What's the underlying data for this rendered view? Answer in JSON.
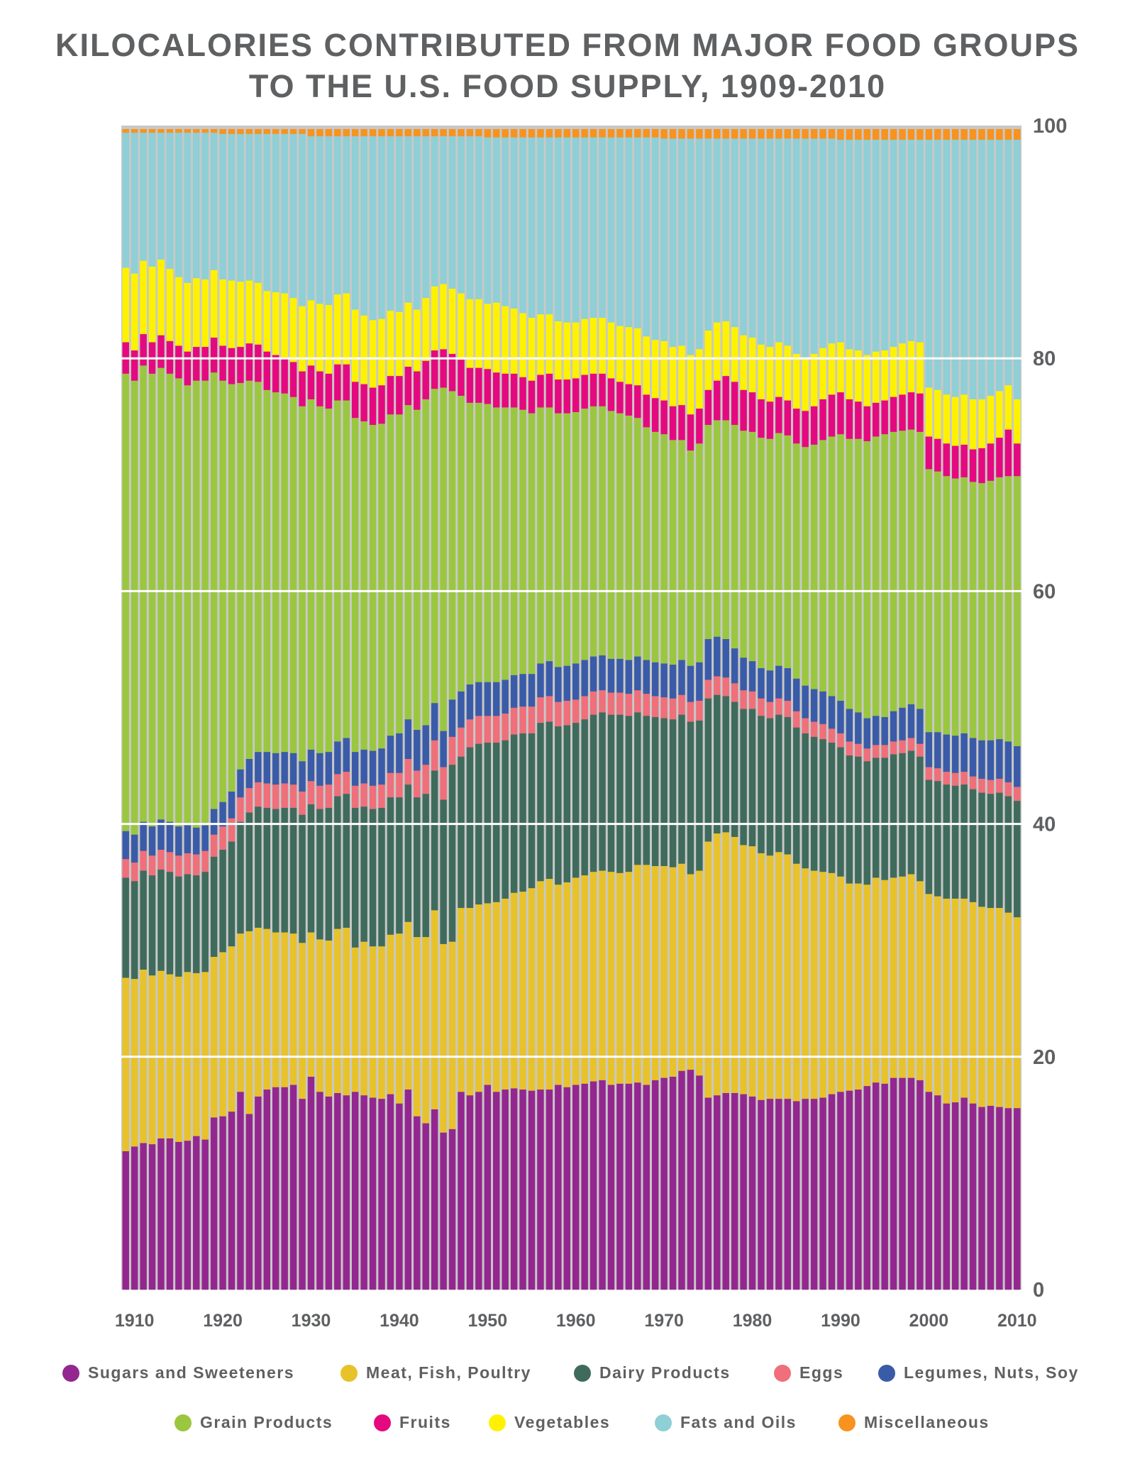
{
  "chart_data": {
    "type": "bar",
    "stacked": true,
    "title": "KILOCALORIES CONTRIBUTED FROM MAJOR FOOD GROUPS",
    "subtitle": "TO THE U.S. FOOD SUPPLY, 1909-2010",
    "xlabel": "",
    "ylabel": "",
    "ylim": [
      0,
      100
    ],
    "y_axis_side": "right",
    "yticks": [
      0,
      20,
      40,
      60,
      80,
      100
    ],
    "xticks": [
      1910,
      1920,
      1930,
      1940,
      1950,
      1960,
      1970,
      1980,
      1990,
      2000,
      2010
    ],
    "grid": "horizontal white lines at 20, 40, 60, 80",
    "plot_background": "#c8c8c8",
    "gridline_color": "#ffffff",
    "legend_placement": "bottom",
    "x_start": 1909,
    "x_end": 2010,
    "series": [
      {
        "name": "Sugars and Sweeteners",
        "color": "#93278f",
        "values": [
          11.9,
          12.3,
          12.6,
          12.5,
          13.0,
          13.0,
          12.7,
          12.8,
          13.2,
          12.9,
          14.8,
          14.9,
          15.3,
          17.0,
          15.1,
          16.6,
          17.2,
          17.4,
          17.4,
          17.6,
          16.4,
          18.3,
          17.0,
          16.6,
          16.9,
          16.7,
          17.0,
          16.7,
          16.5,
          16.4,
          16.8,
          16.0,
          17.2,
          14.9,
          14.3,
          15.5,
          13.5,
          13.8,
          17.0,
          16.7,
          17.0,
          17.6,
          17.0,
          17.2,
          17.3,
          17.2,
          17.1,
          17.2,
          17.2,
          17.6,
          17.4,
          17.6,
          17.7,
          17.9,
          18.0,
          17.6,
          17.7,
          17.7,
          17.8,
          17.6,
          18.0,
          18.2,
          18.3,
          18.8,
          18.9,
          18.4,
          16.5,
          16.7,
          16.9,
          16.9,
          16.8,
          16.6,
          16.3,
          16.4,
          16.4,
          16.4,
          16.2,
          16.4,
          16.4,
          16.5,
          16.8,
          17.0,
          17.1,
          17.2,
          17.5,
          17.8,
          17.7,
          18.2,
          18.2,
          18.2,
          18.0,
          17.0,
          16.7,
          16.0,
          16.1,
          16.5,
          16.0,
          15.7,
          15.8,
          15.7,
          15.6,
          15.6
        ]
      },
      {
        "name": "Meat, Fish, Poultry",
        "color": "#e8c22a",
        "values": [
          14.9,
          14.4,
          14.9,
          14.5,
          14.4,
          14.1,
          14.2,
          14.5,
          14.0,
          14.4,
          13.8,
          14.1,
          14.2,
          13.6,
          15.7,
          14.5,
          13.8,
          13.3,
          13.3,
          13.0,
          13.4,
          12.4,
          13.1,
          13.4,
          14.1,
          14.4,
          12.4,
          13.2,
          13.0,
          13.1,
          13.7,
          14.6,
          14.4,
          15.4,
          16.0,
          17.1,
          16.2,
          16.1,
          15.8,
          16.1,
          16.1,
          15.6,
          16.3,
          16.4,
          16.8,
          17.0,
          17.4,
          17.9,
          18.1,
          17.2,
          17.6,
          17.8,
          17.9,
          18.0,
          18.0,
          18.3,
          18.1,
          18.2,
          18.7,
          18.9,
          18.4,
          18.2,
          18.0,
          17.8,
          16.8,
          17.6,
          22.0,
          22.5,
          22.4,
          22.0,
          21.4,
          21.5,
          21.2,
          20.9,
          21.2,
          21.0,
          20.4,
          19.8,
          19.6,
          19.4,
          19.0,
          18.5,
          17.8,
          17.7,
          17.3,
          17.6,
          17.5,
          17.2,
          17.3,
          17.5,
          17.1,
          17.0,
          17.1,
          17.6,
          17.5,
          17.1,
          17.3,
          17.2,
          17.0,
          17.1,
          16.8,
          16.4
        ]
      },
      {
        "name": "Dairy Products",
        "color": "#3f6b5c",
        "values": [
          8.6,
          8.4,
          8.5,
          8.6,
          8.7,
          8.8,
          8.6,
          8.4,
          8.4,
          8.6,
          8.6,
          8.8,
          9.0,
          9.6,
          10.2,
          10.4,
          10.4,
          10.6,
          10.7,
          10.8,
          11.0,
          11.0,
          11.2,
          11.4,
          11.4,
          11.5,
          12.0,
          11.6,
          11.8,
          11.9,
          11.8,
          11.7,
          11.8,
          12.0,
          12.3,
          12.0,
          12.4,
          15.2,
          13.0,
          13.8,
          13.8,
          13.8,
          13.7,
          13.6,
          13.6,
          13.6,
          13.3,
          13.6,
          13.5,
          13.6,
          13.5,
          13.3,
          13.4,
          13.5,
          13.6,
          13.5,
          13.6,
          13.4,
          13.1,
          12.8,
          12.8,
          12.7,
          12.7,
          12.8,
          13.1,
          12.9,
          12.3,
          11.9,
          11.7,
          11.6,
          11.7,
          11.8,
          11.8,
          11.8,
          11.8,
          11.8,
          11.7,
          11.6,
          11.5,
          11.4,
          11.2,
          11.1,
          11.0,
          10.9,
          10.6,
          10.3,
          10.5,
          10.6,
          10.6,
          10.6,
          10.7,
          9.8,
          9.9,
          9.8,
          9.7,
          9.8,
          9.7,
          9.8,
          9.8,
          9.9,
          10.0,
          10.0
        ]
      },
      {
        "name": "Eggs",
        "color": "#ef6f7a",
        "values": [
          1.6,
          1.6,
          1.7,
          1.7,
          1.7,
          1.7,
          1.8,
          1.8,
          1.8,
          1.8,
          1.9,
          2.0,
          2.0,
          2.1,
          2.1,
          2.1,
          2.1,
          2.1,
          2.1,
          2.0,
          2.0,
          2.0,
          2.0,
          2.0,
          1.9,
          1.9,
          1.9,
          2.0,
          2.0,
          2.0,
          2.1,
          2.1,
          2.2,
          2.3,
          2.5,
          2.6,
          2.8,
          2.4,
          2.5,
          2.4,
          2.4,
          2.3,
          2.3,
          2.3,
          2.3,
          2.3,
          2.3,
          2.2,
          2.2,
          2.1,
          2.1,
          2.0,
          2.0,
          2.0,
          1.9,
          1.9,
          1.9,
          1.9,
          1.9,
          1.9,
          1.8,
          1.8,
          1.8,
          1.7,
          1.7,
          1.7,
          1.6,
          1.6,
          1.6,
          1.6,
          1.6,
          1.5,
          1.5,
          1.4,
          1.4,
          1.4,
          1.4,
          1.3,
          1.3,
          1.3,
          1.2,
          1.2,
          1.2,
          1.1,
          1.1,
          1.1,
          1.1,
          1.1,
          1.1,
          1.1,
          1.1,
          1.1,
          1.1,
          1.1,
          1.1,
          1.1,
          1.1,
          1.2,
          1.2,
          1.2,
          1.2,
          1.2
        ]
      },
      {
        "name": "Legumes, Nuts, Soy",
        "color": "#3a5ba8",
        "values": [
          2.4,
          2.4,
          2.5,
          2.5,
          2.6,
          2.6,
          2.5,
          2.4,
          2.3,
          2.2,
          2.2,
          2.1,
          2.3,
          2.4,
          2.5,
          2.6,
          2.7,
          2.7,
          2.7,
          2.7,
          2.6,
          2.7,
          2.8,
          2.8,
          2.8,
          2.9,
          2.9,
          2.9,
          3.0,
          3.1,
          3.2,
          3.4,
          3.4,
          3.5,
          3.4,
          3.2,
          3.1,
          3.2,
          3.1,
          3.0,
          2.9,
          2.9,
          2.9,
          2.9,
          2.8,
          2.8,
          2.8,
          2.9,
          3.0,
          3.0,
          3.0,
          3.1,
          3.1,
          3.0,
          3.0,
          2.9,
          2.9,
          2.9,
          2.9,
          2.9,
          2.9,
          2.9,
          2.9,
          3.0,
          3.1,
          3.3,
          3.5,
          3.4,
          3.3,
          3.0,
          2.8,
          2.6,
          2.6,
          2.7,
          2.8,
          2.8,
          2.8,
          2.8,
          2.8,
          2.8,
          2.8,
          2.8,
          2.8,
          2.7,
          2.6,
          2.5,
          2.4,
          2.6,
          2.8,
          2.9,
          3.0,
          3.0,
          3.1,
          3.2,
          3.2,
          3.3,
          3.3,
          3.3,
          3.4,
          3.4,
          3.5,
          3.5
        ]
      },
      {
        "name": "Grain Products",
        "color": "#9ac73f",
        "values": [
          39.3,
          39.0,
          39.2,
          38.9,
          38.8,
          38.5,
          38.5,
          37.8,
          38.4,
          38.2,
          37.5,
          36.2,
          35.0,
          33.2,
          32.5,
          31.8,
          31.1,
          31.0,
          30.8,
          30.6,
          30.5,
          30.1,
          29.8,
          29.5,
          29.3,
          29.0,
          28.7,
          28.2,
          28.0,
          27.9,
          27.6,
          27.4,
          27.0,
          27.5,
          28.0,
          27.0,
          29.5,
          26.5,
          25.4,
          24.2,
          24.0,
          23.9,
          23.6,
          23.4,
          23.0,
          22.7,
          22.4,
          22.0,
          21.8,
          21.8,
          21.7,
          21.6,
          21.6,
          21.5,
          21.4,
          21.3,
          21.1,
          21.0,
          20.5,
          20.0,
          19.8,
          19.7,
          19.3,
          18.9,
          18.5,
          18.8,
          18.4,
          18.6,
          18.8,
          19.2,
          19.5,
          19.7,
          19.8,
          19.9,
          20.0,
          20.0,
          20.2,
          20.5,
          21.0,
          21.6,
          22.3,
          22.9,
          23.2,
          23.5,
          23.8,
          24.0,
          24.3,
          24.0,
          23.8,
          23.6,
          23.8,
          22.6,
          22.4,
          22.2,
          22.1,
          22.0,
          22.0,
          22.1,
          22.3,
          22.5,
          22.8,
          23.2
        ]
      },
      {
        "name": "Fruits",
        "color": "#e5097f",
        "values": [
          2.7,
          2.6,
          2.7,
          2.7,
          2.8,
          2.8,
          2.8,
          2.9,
          2.9,
          2.9,
          3.0,
          3.0,
          3.1,
          3.1,
          3.2,
          3.2,
          3.3,
          3.2,
          3.1,
          3.0,
          3.0,
          2.9,
          3.0,
          3.0,
          3.1,
          3.1,
          3.1,
          3.2,
          3.2,
          3.3,
          3.3,
          3.3,
          3.3,
          3.3,
          3.3,
          3.3,
          3.3,
          3.2,
          3.1,
          3.0,
          3.0,
          3.0,
          3.0,
          2.9,
          2.9,
          2.8,
          2.8,
          2.8,
          2.9,
          2.9,
          2.9,
          2.9,
          2.9,
          2.8,
          2.8,
          2.8,
          2.7,
          2.7,
          2.8,
          2.8,
          2.9,
          2.9,
          2.9,
          3.0,
          3.1,
          3.0,
          3.0,
          3.4,
          3.8,
          3.7,
          3.5,
          3.4,
          3.3,
          3.2,
          3.1,
          3.0,
          3.0,
          3.1,
          3.3,
          3.5,
          3.6,
          3.6,
          3.4,
          3.2,
          3.0,
          2.9,
          2.9,
          3.0,
          3.1,
          3.2,
          3.3,
          2.8,
          2.8,
          2.8,
          2.8,
          2.8,
          2.8,
          3.0,
          3.2,
          3.4,
          4.0,
          2.8
        ]
      },
      {
        "name": "Vegetables",
        "color": "#fff200",
        "values": [
          6.4,
          6.6,
          6.3,
          6.5,
          6.5,
          6.2,
          5.9,
          5.9,
          5.9,
          5.8,
          5.8,
          5.7,
          5.8,
          5.6,
          5.4,
          5.3,
          5.2,
          5.4,
          5.5,
          5.5,
          5.6,
          5.6,
          5.8,
          5.9,
          6.0,
          6.1,
          6.2,
          5.9,
          5.8,
          5.7,
          5.6,
          5.5,
          5.5,
          5.3,
          5.4,
          5.5,
          5.6,
          5.6,
          5.7,
          5.9,
          5.9,
          5.6,
          6.0,
          5.8,
          5.6,
          5.5,
          5.4,
          5.2,
          5.1,
          5.0,
          4.9,
          4.8,
          4.8,
          4.8,
          4.8,
          4.8,
          4.8,
          4.9,
          4.9,
          5.0,
          5.0,
          5.1,
          5.1,
          5.1,
          5.1,
          5.1,
          5.1,
          5.0,
          4.7,
          4.7,
          4.7,
          4.7,
          4.7,
          4.7,
          4.7,
          4.7,
          4.7,
          4.6,
          4.5,
          4.4,
          4.4,
          4.3,
          4.3,
          4.4,
          4.4,
          4.4,
          4.3,
          4.3,
          4.4,
          4.4,
          4.4,
          4.2,
          4.2,
          4.2,
          4.2,
          4.3,
          4.3,
          4.2,
          4.1,
          4.0,
          3.8,
          3.8
        ]
      },
      {
        "name": "Fats and Oils",
        "color": "#8fcfd6",
        "values": [
          11.6,
          12.1,
          11.0,
          11.5,
          10.9,
          11.7,
          12.4,
          12.9,
          12.5,
          12.6,
          11.8,
          12.5,
          12.6,
          12.7,
          12.6,
          12.8,
          13.5,
          13.6,
          13.7,
          14.1,
          14.8,
          14.1,
          14.4,
          14.5,
          13.6,
          13.5,
          14.9,
          15.4,
          15.8,
          15.7,
          15.0,
          15.1,
          14.3,
          14.9,
          13.9,
          12.9,
          12.7,
          13.1,
          13.5,
          14.0,
          14.0,
          14.3,
          14.2,
          14.5,
          14.7,
          15.1,
          15.5,
          15.2,
          15.2,
          15.8,
          15.9,
          15.9,
          15.6,
          15.5,
          15.5,
          15.9,
          16.2,
          16.3,
          16.4,
          17.1,
          17.4,
          17.4,
          17.9,
          17.8,
          18.6,
          18.1,
          16.5,
          15.8,
          15.7,
          16.2,
          16.9,
          17.1,
          17.7,
          17.9,
          17.5,
          17.8,
          18.5,
          18.8,
          18.5,
          18.0,
          17.6,
          17.4,
          18.0,
          18.1,
          18.5,
          18.2,
          18.1,
          17.8,
          17.5,
          17.3,
          17.4,
          21.3,
          21.5,
          21.9,
          22.1,
          21.9,
          22.3,
          22.3,
          22.0,
          21.6,
          21.1,
          22.3
        ]
      },
      {
        "name": "Miscellaneous",
        "color": "#f7931e",
        "values": [
          0.3,
          0.3,
          0.3,
          0.3,
          0.3,
          0.3,
          0.3,
          0.3,
          0.3,
          0.3,
          0.3,
          0.4,
          0.4,
          0.4,
          0.4,
          0.4,
          0.4,
          0.4,
          0.4,
          0.4,
          0.4,
          0.6,
          0.6,
          0.6,
          0.6,
          0.6,
          0.6,
          0.6,
          0.6,
          0.6,
          0.6,
          0.6,
          0.6,
          0.6,
          0.6,
          0.6,
          0.6,
          0.6,
          0.6,
          0.6,
          0.6,
          0.7,
          0.7,
          0.7,
          0.7,
          0.7,
          0.7,
          0.7,
          0.7,
          0.7,
          0.7,
          0.7,
          0.7,
          0.7,
          0.7,
          0.7,
          0.7,
          0.7,
          0.7,
          0.7,
          0.7,
          0.8,
          0.8,
          0.8,
          0.8,
          0.8,
          0.8,
          0.8,
          0.8,
          0.8,
          0.8,
          0.8,
          0.8,
          0.8,
          0.8,
          0.8,
          0.8,
          0.8,
          0.8,
          0.8,
          0.8,
          0.9,
          0.9,
          0.9,
          0.9,
          0.9,
          0.9,
          0.9,
          0.9,
          0.9,
          0.9,
          0.9,
          0.9,
          0.9,
          0.9,
          0.9,
          0.9,
          0.9,
          0.9,
          0.9,
          0.9,
          0.9
        ]
      }
    ]
  }
}
